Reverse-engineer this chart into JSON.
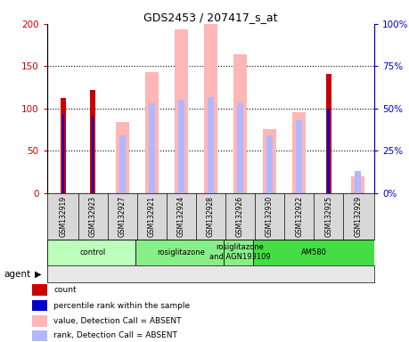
{
  "title": "GDS2453 / 207417_s_at",
  "samples": [
    "GSM132919",
    "GSM132923",
    "GSM132927",
    "GSM132921",
    "GSM132924",
    "GSM132928",
    "GSM132926",
    "GSM132930",
    "GSM132922",
    "GSM132925",
    "GSM132929"
  ],
  "count_values": [
    113,
    122,
    0,
    0,
    0,
    0,
    0,
    0,
    0,
    141,
    0
  ],
  "percentile_rank": [
    47,
    45,
    0,
    0,
    0,
    0,
    0,
    0,
    0,
    50,
    0
  ],
  "absent_value": [
    0,
    0,
    84,
    143,
    194,
    200,
    164,
    76,
    96,
    0,
    20
  ],
  "absent_rank": [
    0,
    0,
    34,
    53,
    55,
    57,
    53,
    34,
    43,
    0,
    13
  ],
  "count_color": "#cc0000",
  "percentile_color": "#0000cc",
  "absent_value_color": "#ffb6b6",
  "absent_rank_color": "#b0b8ff",
  "ylim_left": [
    0,
    200
  ],
  "ylim_right": [
    0,
    100
  ],
  "yticks_left": [
    0,
    50,
    100,
    150,
    200
  ],
  "yticks_right": [
    0,
    25,
    50,
    75,
    100
  ],
  "ytick_labels_right": [
    "0%",
    "25%",
    "50%",
    "75%",
    "100%"
  ],
  "groups_data": [
    {
      "label": "control",
      "cols": [
        0,
        1,
        2
      ],
      "color": "#bbffbb"
    },
    {
      "label": "rosiglitazone",
      "cols": [
        3,
        4,
        5
      ],
      "color": "#88ee88"
    },
    {
      "label": "rosiglitazone\nand AGN193109",
      "cols": [
        6
      ],
      "color": "#88ee88"
    },
    {
      "label": "AM580",
      "cols": [
        7,
        8,
        9,
        10
      ],
      "color": "#44dd44"
    }
  ],
  "legend": [
    {
      "label": "count",
      "color": "#cc0000"
    },
    {
      "label": "percentile rank within the sample",
      "color": "#0000cc"
    },
    {
      "label": "value, Detection Call = ABSENT",
      "color": "#ffb6b6"
    },
    {
      "label": "rank, Detection Call = ABSENT",
      "color": "#b0b8ff"
    }
  ]
}
